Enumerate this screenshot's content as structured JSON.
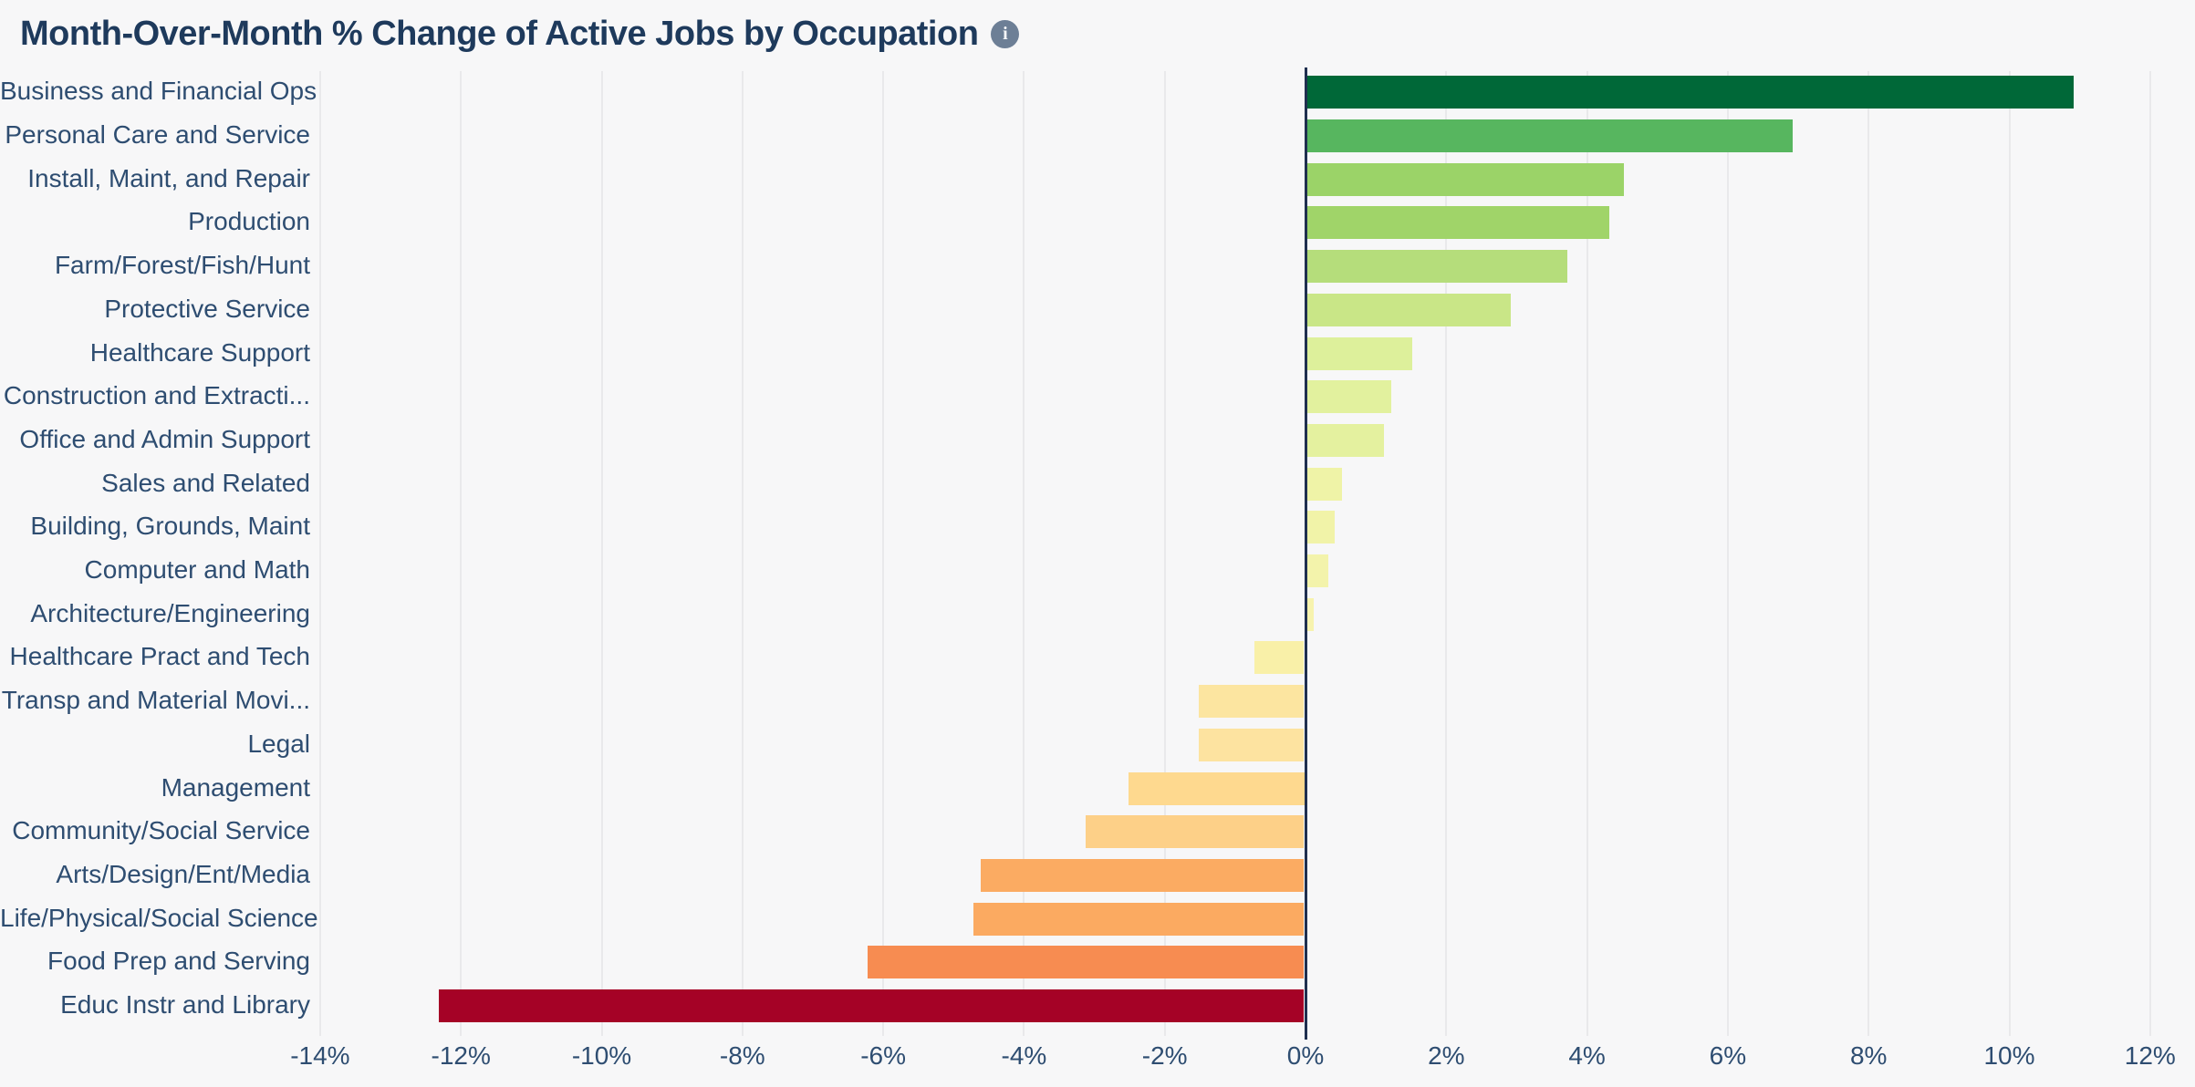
{
  "header": {
    "title": "Month-Over-Month % Change of Active Jobs by Occupation",
    "info_icon_glyph": "i"
  },
  "colors": {
    "background": "#f7f7f8",
    "gridline": "#e9e9eb",
    "zero_line": "#1f2f4f",
    "title_text": "#1e3a5c",
    "label_text": "#2e4d71",
    "info_icon_bg": "#6d7f96"
  },
  "chart_data": {
    "type": "bar",
    "orientation": "horizontal",
    "title": "Month-Over-Month % Change of Active Jobs by Occupation",
    "xlabel": "",
    "ylabel": "",
    "xlim": [
      -14,
      12.6
    ],
    "grid": true,
    "legend": false,
    "x_tick_labels": [
      "-14%",
      "-12%",
      "-10%",
      "-8%",
      "-6%",
      "-4%",
      "-2%",
      "0%",
      "2%",
      "4%",
      "6%",
      "8%",
      "10%",
      "12%"
    ],
    "x_tick_values": [
      -14,
      -12,
      -10,
      -8,
      -6,
      -4,
      -2,
      0,
      2,
      4,
      6,
      8,
      10,
      12
    ],
    "categories": [
      "Business and Financial Ops",
      "Personal Care and Service",
      "Install, Maint, and Repair",
      "Production",
      "Farm/Forest/Fish/Hunt",
      "Protective Service",
      "Healthcare Support",
      "Construction and Extracti...",
      "Office and Admin Support",
      "Sales and Related",
      "Building, Grounds, Maint",
      "Computer and Math",
      "Architecture/Engineering",
      "Healthcare Pract and Tech",
      "Transp and Material Movi...",
      "Legal",
      "Management",
      "Community/Social Service",
      "Arts/Design/Ent/Media",
      "Life/Physical/Social Science",
      "Food Prep and Serving",
      "Educ Instr and Library"
    ],
    "values": [
      10.9,
      6.9,
      4.5,
      4.3,
      3.7,
      2.9,
      1.5,
      1.2,
      1.1,
      0.5,
      0.4,
      0.3,
      0.1,
      -0.7,
      -1.5,
      -1.5,
      -2.5,
      -3.1,
      -4.6,
      -4.7,
      -6.2,
      -12.3
    ],
    "bar_colors": [
      "#006838",
      "#57b65f",
      "#9bd368",
      "#a0d469",
      "#b5dd7b",
      "#c9e687",
      "#ddf09b",
      "#e2f19e",
      "#e4f19f",
      "#eff3a7",
      "#f1f3a8",
      "#f3f3ab",
      "#f7f3ae",
      "#f9f0a8",
      "#fce5a0",
      "#fde3a0",
      "#fed98f",
      "#fdd088",
      "#fbab62",
      "#fbaa61",
      "#f78c51",
      "#a50226"
    ],
    "value_unit": "%"
  }
}
